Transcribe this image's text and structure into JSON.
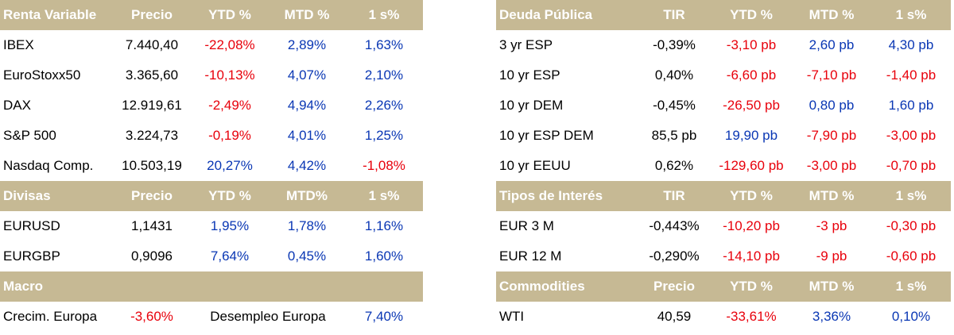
{
  "colors": {
    "header_bg": "#c6b994",
    "negative": "#e8000b",
    "positive": "#0a37b4"
  },
  "renta_variable": {
    "header": [
      "Renta Variable",
      "Precio",
      "YTD %",
      "MTD %",
      "1 s%"
    ],
    "rows": [
      [
        "IBEX",
        "7.440,40",
        "-22,08%",
        "2,89%",
        "1,63%"
      ],
      [
        "EuroStoxx50",
        "3.365,60",
        "-10,13%",
        "4,07%",
        "2,10%"
      ],
      [
        "DAX",
        "12.919,61",
        "-2,49%",
        "4,94%",
        "2,26%"
      ],
      [
        "S&P 500",
        "3.224,73",
        "-0,19%",
        "4,01%",
        "1,25%"
      ],
      [
        "Nasdaq Comp.",
        "10.503,19",
        "20,27%",
        "4,42%",
        "-1,08%"
      ]
    ]
  },
  "divisas": {
    "header": [
      "Divisas",
      "Precio",
      "YTD %",
      "MTD%",
      "1 s%"
    ],
    "rows": [
      [
        "EURUSD",
        "1,1431",
        "1,95%",
        "1,78%",
        "1,16%"
      ],
      [
        "EURGBP",
        "0,9096",
        "7,64%",
        "0,45%",
        "1,60%"
      ]
    ]
  },
  "macro": {
    "header": "Macro",
    "row": [
      "Crecim. Europa",
      "-3,60%",
      "Desempleo Europa",
      "7,40%"
    ]
  },
  "deuda_publica": {
    "header": [
      "Deuda Pública",
      "TIR",
      "YTD %",
      "MTD %",
      "1 s%"
    ],
    "rows": [
      [
        "3 yr ESP",
        "-0,39%",
        "-3,10 pb",
        "2,60 pb",
        "4,30 pb"
      ],
      [
        "10 yr ESP",
        "0,40%",
        "-6,60 pb",
        "-7,10 pb",
        "-1,40 pb"
      ],
      [
        "10 yr DEM",
        "-0,45%",
        "-26,50 pb",
        "0,80 pb",
        "1,60 pb"
      ],
      [
        "10 yr ESP DEM",
        "85,5 pb",
        "19,90 pb",
        "-7,90 pb",
        "-3,00 pb"
      ],
      [
        "10 yr EEUU",
        "0,62%",
        "-129,60 pb",
        "-3,00 pb",
        "-0,70 pb"
      ]
    ]
  },
  "tipos_interes": {
    "header": [
      "Tipos de Interés",
      "TIR",
      "YTD %",
      "MTD %",
      "1 s%"
    ],
    "rows": [
      [
        "EUR 3 M",
        "-0,443%",
        "-10,20 pb",
        "-3 pb",
        "-0,30 pb"
      ],
      [
        "EUR 12 M",
        "-0,290%",
        "-14,10 pb",
        "-9 pb",
        "-0,60 pb"
      ]
    ]
  },
  "commodities": {
    "header": [
      "Commodities",
      "Precio",
      "YTD %",
      "MTD %",
      "1 s%"
    ],
    "rows": [
      [
        "WTI",
        "40,59",
        "-33,61%",
        "3,36%",
        "0,10%"
      ]
    ]
  }
}
